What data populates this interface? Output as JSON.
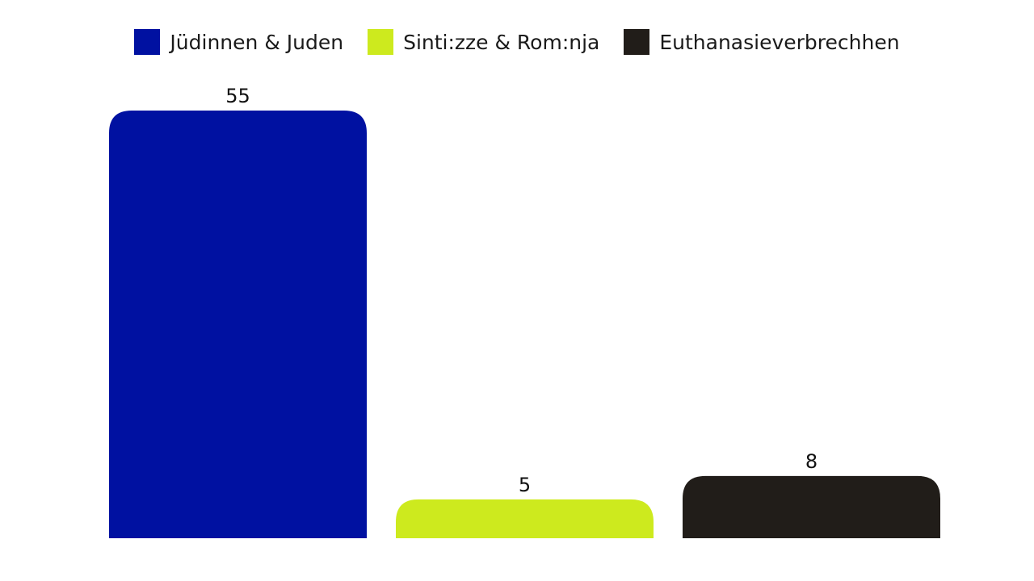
{
  "chart_data": {
    "type": "bar",
    "categories": [
      "Jüdinnen & Juden",
      "Sinti:zze & Rom:nja",
      "Euthanasieverbrechhen"
    ],
    "values": [
      55,
      5,
      8
    ],
    "colors": [
      "#0011a1",
      "#cdea1e",
      "#211d19"
    ],
    "data_labels": [
      "55",
      "5",
      "8"
    ],
    "title": "",
    "xlabel": "",
    "ylabel": "",
    "ylim": [
      0,
      55
    ],
    "grid": false,
    "legend_position": "top-center"
  },
  "legend": {
    "items": [
      {
        "label": "Jüdinnen & Juden",
        "color": "#0011a1"
      },
      {
        "label": "Sinti:zze & Rom:nja",
        "color": "#cdea1e"
      },
      {
        "label": "Euthanasieverbrechhen",
        "color": "#211d19"
      }
    ]
  }
}
